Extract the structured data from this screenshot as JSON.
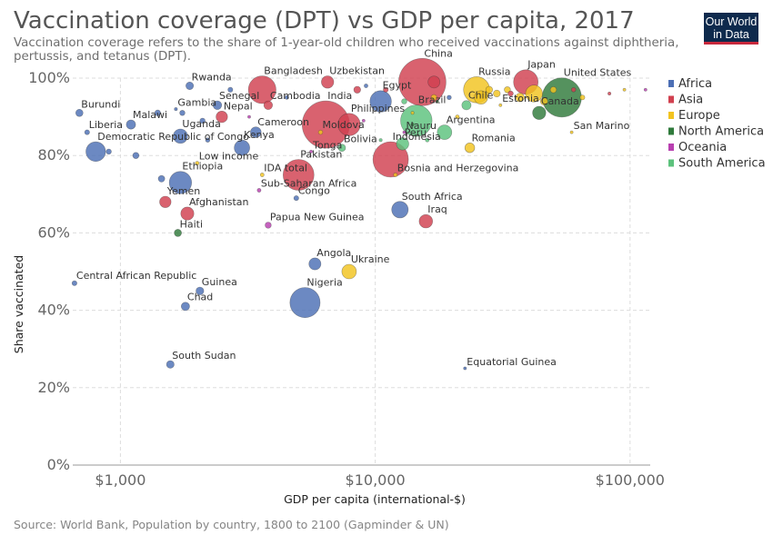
{
  "header": {
    "title": "Vaccination coverage (DPT) vs GDP per capita, 2017",
    "subtitle": "Vaccination coverage refers to the share of 1-year-old children who received vaccinations against diphtheria, pertussis, and tetanus (DPT).",
    "logo_line1": "Our World",
    "logo_line2": "in Data"
  },
  "footer": {
    "source": "Source: World Bank, Population by country, 1800 to 2100 (Gapminder & UN)"
  },
  "chart_data": {
    "type": "scatter",
    "title": "Vaccination coverage (DPT) vs GDP per capita, 2017",
    "xlabel": "GDP per capita (international-$)",
    "ylabel": "Share vaccinated",
    "x_scale": "log",
    "xlim": [
      650,
      120000
    ],
    "ylim": [
      0,
      100
    ],
    "x_ticks": [
      1000,
      10000,
      100000
    ],
    "x_tick_labels": [
      "$1,000",
      "$10,000",
      "$100,000"
    ],
    "y_ticks": [
      0,
      20,
      40,
      60,
      80,
      100
    ],
    "y_tick_labels": [
      "0%",
      "20%",
      "40%",
      "60%",
      "80%",
      "100%"
    ],
    "grid": true,
    "legend_position": "right",
    "legend": [
      {
        "name": "Africa",
        "color": "#4c6fb5"
      },
      {
        "name": "Asia",
        "color": "#d1404f"
      },
      {
        "name": "Europe",
        "color": "#f2c31f"
      },
      {
        "name": "North America",
        "color": "#2f7a3b"
      },
      {
        "name": "Oceania",
        "color": "#b83fb0"
      },
      {
        "name": "South America",
        "color": "#5cc27c"
      }
    ],
    "points": [
      {
        "label": "Burundi",
        "x": 690,
        "y": 91,
        "region": "Africa",
        "pop": 11
      },
      {
        "label": "Liberia",
        "x": 740,
        "y": 86,
        "region": "Africa",
        "pop": 5
      },
      {
        "label": "Democratic Republic of Congo",
        "x": 800,
        "y": 81,
        "region": "Africa",
        "pop": 81
      },
      {
        "label": "Malawi",
        "x": 1100,
        "y": 88,
        "region": "Africa",
        "pop": 18
      },
      {
        "label": "Rwanda",
        "x": 1870,
        "y": 98,
        "region": "Africa",
        "pop": 12
      },
      {
        "label": "Gambia",
        "x": 1650,
        "y": 92,
        "region": "Africa",
        "pop": 2
      },
      {
        "label": "Uganda",
        "x": 1720,
        "y": 85,
        "region": "Africa",
        "pop": 43
      },
      {
        "label": "Senegal",
        "x": 2400,
        "y": 93,
        "region": "Africa",
        "pop": 16
      },
      {
        "label": "Nepal",
        "x": 2500,
        "y": 90,
        "region": "Asia",
        "pop": 28
      },
      {
        "label": "Bangladesh",
        "x": 3600,
        "y": 97,
        "region": "Asia",
        "pop": 160
      },
      {
        "label": "Cambodia",
        "x": 3800,
        "y": 93,
        "region": "Asia",
        "pop": 16
      },
      {
        "label": "Cameroon",
        "x": 3400,
        "y": 86,
        "region": "Africa",
        "pop": 24
      },
      {
        "label": "Kenya",
        "x": 3000,
        "y": 82,
        "region": "Africa",
        "pop": 50
      },
      {
        "label": "Low income",
        "x": 2000,
        "y": 78,
        "region": "Europe",
        "pop": 3
      },
      {
        "label": "Ethiopia",
        "x": 1720,
        "y": 73,
        "region": "Africa",
        "pop": 105
      },
      {
        "label": "Yemen",
        "x": 1500,
        "y": 68,
        "region": "Asia",
        "pop": 28
      },
      {
        "label": "Afghanistan",
        "x": 1830,
        "y": 65,
        "region": "Asia",
        "pop": 36
      },
      {
        "label": "Haiti",
        "x": 1680,
        "y": 60,
        "region": "North America",
        "pop": 11
      },
      {
        "label": "IDA total",
        "x": 3600,
        "y": 75,
        "region": "Europe",
        "pop": 3
      },
      {
        "label": "Sub-Saharan Africa",
        "x": 3500,
        "y": 71,
        "region": "Oceania",
        "pop": 3
      },
      {
        "label": "Pakistan",
        "x": 5000,
        "y": 75,
        "region": "Asia",
        "pop": 200
      },
      {
        "label": "Congo",
        "x": 4900,
        "y": 69,
        "region": "Africa",
        "pop": 5
      },
      {
        "label": "Papua New Guinea",
        "x": 3800,
        "y": 62,
        "region": "Oceania",
        "pop": 8
      },
      {
        "label": "Tonga",
        "x": 5600,
        "y": 81,
        "region": "Oceania",
        "pop": 1
      },
      {
        "label": "India",
        "x": 6400,
        "y": 88,
        "region": "Asia",
        "pop": 1330
      },
      {
        "label": "Uzbekistan",
        "x": 6500,
        "y": 99,
        "region": "Asia",
        "pop": 32
      },
      {
        "label": "Moldova",
        "x": 6100,
        "y": 86,
        "region": "Europe",
        "pop": 4
      },
      {
        "label": "Bolivia",
        "x": 7400,
        "y": 82,
        "region": "South America",
        "pop": 11
      },
      {
        "label": "Philippines",
        "x": 7900,
        "y": 88,
        "region": "Asia",
        "pop": 105
      },
      {
        "label": "Egypt",
        "x": 10500,
        "y": 94,
        "region": "Africa",
        "pop": 97
      },
      {
        "label": "Indonesia",
        "x": 11500,
        "y": 79,
        "region": "Asia",
        "pop": 264
      },
      {
        "label": "Bosnia and Herzegovina",
        "x": 12000,
        "y": 75,
        "region": "Europe",
        "pop": 3
      },
      {
        "label": "Nauru",
        "x": 13000,
        "y": 86,
        "region": "Oceania",
        "pop": 1
      },
      {
        "label": "Brazil",
        "x": 14500,
        "y": 89,
        "region": "South America",
        "pop": 209
      },
      {
        "label": "Peru",
        "x": 12800,
        "y": 83,
        "region": "South America",
        "pop": 32
      },
      {
        "label": "China",
        "x": 15300,
        "y": 99,
        "region": "Asia",
        "pop": 1390
      },
      {
        "label": "South Africa",
        "x": 12500,
        "y": 66,
        "region": "Africa",
        "pop": 57
      },
      {
        "label": "Iraq",
        "x": 15800,
        "y": 63,
        "region": "Asia",
        "pop": 38
      },
      {
        "label": "Argentina",
        "x": 18700,
        "y": 86,
        "region": "South America",
        "pop": 44
      },
      {
        "label": "Chile",
        "x": 22800,
        "y": 93,
        "region": "South America",
        "pop": 18
      },
      {
        "label": "Romania",
        "x": 23500,
        "y": 82,
        "region": "Europe",
        "pop": 20
      },
      {
        "label": "Russia",
        "x": 25000,
        "y": 97,
        "region": "Europe",
        "pop": 144
      },
      {
        "label": "Estonia",
        "x": 31000,
        "y": 93,
        "region": "Europe",
        "pop": 1
      },
      {
        "label": "Japan",
        "x": 39000,
        "y": 99,
        "region": "Asia",
        "pop": 127
      },
      {
        "label": "Canada",
        "x": 44000,
        "y": 91,
        "region": "North America",
        "pop": 37
      },
      {
        "label": "United States",
        "x": 54000,
        "y": 95,
        "region": "North America",
        "pop": 325
      },
      {
        "label": "San Marino",
        "x": 59000,
        "y": 86,
        "region": "Europe",
        "pop": 1
      },
      {
        "label": "Angola",
        "x": 5800,
        "y": 52,
        "region": "Africa",
        "pop": 30
      },
      {
        "label": "Ukraine",
        "x": 7900,
        "y": 50,
        "region": "Europe",
        "pop": 44
      },
      {
        "label": "Nigeria",
        "x": 5300,
        "y": 42,
        "region": "Africa",
        "pop": 191
      },
      {
        "label": "Central African Republic",
        "x": 660,
        "y": 47,
        "region": "Africa",
        "pop": 5
      },
      {
        "label": "Guinea",
        "x": 2050,
        "y": 45,
        "region": "Africa",
        "pop": 13
      },
      {
        "label": "Chad",
        "x": 1800,
        "y": 41,
        "region": "Africa",
        "pop": 15
      },
      {
        "label": "South Sudan",
        "x": 1570,
        "y": 26,
        "region": "Africa",
        "pop": 12
      },
      {
        "label": "Equatorial Guinea",
        "x": 22500,
        "y": 25,
        "region": "Africa",
        "pop": 1.3
      },
      {
        "label": "",
        "x": 900,
        "y": 81,
        "region": "Africa",
        "pop": 6
      },
      {
        "label": "",
        "x": 1150,
        "y": 80,
        "region": "Africa",
        "pop": 8
      },
      {
        "label": "",
        "x": 1450,
        "y": 74,
        "region": "Africa",
        "pop": 9
      },
      {
        "label": "",
        "x": 1400,
        "y": 91,
        "region": "Africa",
        "pop": 7
      },
      {
        "label": "",
        "x": 1750,
        "y": 91,
        "region": "Africa",
        "pop": 6
      },
      {
        "label": "",
        "x": 2100,
        "y": 89,
        "region": "Africa",
        "pop": 6
      },
      {
        "label": "",
        "x": 2200,
        "y": 84,
        "region": "Africa",
        "pop": 4
      },
      {
        "label": "",
        "x": 2700,
        "y": 97,
        "region": "Africa",
        "pop": 5
      },
      {
        "label": "",
        "x": 4500,
        "y": 95,
        "region": "Africa",
        "pop": 3
      },
      {
        "label": "",
        "x": 9200,
        "y": 98,
        "region": "Africa",
        "pop": 3
      },
      {
        "label": "",
        "x": 19500,
        "y": 95,
        "region": "Africa",
        "pop": 4
      },
      {
        "label": "",
        "x": 8500,
        "y": 97,
        "region": "Asia",
        "pop": 10
      },
      {
        "label": "",
        "x": 11000,
        "y": 97,
        "region": "Asia",
        "pop": 5
      },
      {
        "label": "",
        "x": 17000,
        "y": 99,
        "region": "Asia",
        "pop": 30
      },
      {
        "label": "",
        "x": 34000,
        "y": 96,
        "region": "Asia",
        "pop": 6
      },
      {
        "label": "",
        "x": 60000,
        "y": 97,
        "region": "Asia",
        "pop": 4
      },
      {
        "label": "",
        "x": 83000,
        "y": 96,
        "region": "Asia",
        "pop": 2
      },
      {
        "label": "",
        "x": 30000,
        "y": 96,
        "region": "Europe",
        "pop": 10
      },
      {
        "label": "",
        "x": 33000,
        "y": 97,
        "region": "Europe",
        "pop": 8
      },
      {
        "label": "",
        "x": 37000,
        "y": 95,
        "region": "Europe",
        "pop": 16
      },
      {
        "label": "",
        "x": 42000,
        "y": 96,
        "region": "Europe",
        "pop": 60
      },
      {
        "label": "",
        "x": 46000,
        "y": 94,
        "region": "Europe",
        "pop": 11
      },
      {
        "label": "",
        "x": 50000,
        "y": 97,
        "region": "Europe",
        "pop": 8
      },
      {
        "label": "",
        "x": 26000,
        "y": 95,
        "region": "Europe",
        "pop": 38
      },
      {
        "label": "",
        "x": 28000,
        "y": 97,
        "region": "Europe",
        "pop": 10
      },
      {
        "label": "",
        "x": 17000,
        "y": 95,
        "region": "Europe",
        "pop": 7
      },
      {
        "label": "",
        "x": 14000,
        "y": 91,
        "region": "Europe",
        "pop": 2
      },
      {
        "label": "",
        "x": 21000,
        "y": 90,
        "region": "Europe",
        "pop": 3
      },
      {
        "label": "",
        "x": 65000,
        "y": 95,
        "region": "Europe",
        "pop": 5
      },
      {
        "label": "",
        "x": 95000,
        "y": 97,
        "region": "Europe",
        "pop": 1
      },
      {
        "label": "",
        "x": 13000,
        "y": 94,
        "region": "South America",
        "pop": 6
      },
      {
        "label": "",
        "x": 16000,
        "y": 84,
        "region": "South America",
        "pop": 3
      },
      {
        "label": "",
        "x": 10500,
        "y": 84,
        "region": "South America",
        "pop": 2
      },
      {
        "label": "",
        "x": 14000,
        "y": 88,
        "region": "North America",
        "pop": 2
      },
      {
        "label": "",
        "x": 17500,
        "y": 94,
        "region": "North America",
        "pop": 1
      },
      {
        "label": "",
        "x": 9000,
        "y": 89,
        "region": "Oceania",
        "pop": 1
      },
      {
        "label": "",
        "x": 3200,
        "y": 90,
        "region": "Oceania",
        "pop": 1
      },
      {
        "label": "",
        "x": 115000,
        "y": 97,
        "region": "Oceania",
        "pop": 1
      }
    ]
  }
}
